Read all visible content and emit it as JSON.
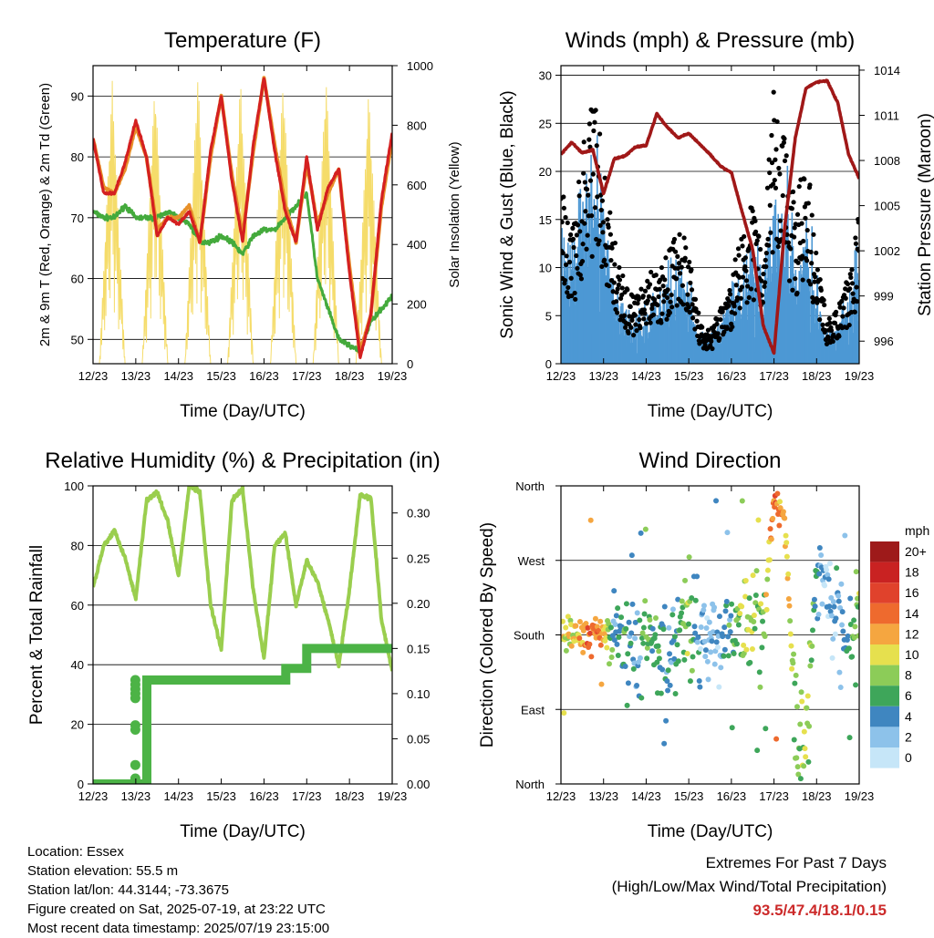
{
  "colors": {
    "temp2m": "#e8912a",
    "temp9m": "#d42020",
    "dewpoint": "#44aa3c",
    "solar": "#f5dc6a",
    "gust": "#000000",
    "wind": "#4d98d4",
    "pressure": "#a01818",
    "rh": "#9ace4e",
    "precip": "#4cb346",
    "extremes_text": "#cc2a2a"
  },
  "time_ticks": [
    "12/23",
    "13/23",
    "14/23",
    "15/23",
    "16/23",
    "17/23",
    "18/23",
    "19/23"
  ],
  "time_axis_label": "Time (Day/UTC)",
  "panels": {
    "temperature": {
      "title": "Temperature (F)",
      "ylabel_left": "2m & 9m T (Red, Orange) & 2m Td (Green)",
      "ylabel_right": "Solar Insolation (Yellow)",
      "left_ticks": [
        "50",
        "60",
        "70",
        "80",
        "90"
      ],
      "right_ticks": [
        "0",
        "200",
        "400",
        "600",
        "800",
        "1000"
      ]
    },
    "winds": {
      "title": "Winds (mph) & Pressure (mb)",
      "ylabel_left": "Sonic Wind & Gust (Blue, Black)",
      "ylabel_right": "Station Pressure (Maroon)",
      "left_ticks": [
        "0",
        "5",
        "10",
        "15",
        "20",
        "25",
        "30"
      ],
      "right_ticks": [
        "996",
        "999",
        "1002",
        "1005",
        "1008",
        "1011",
        "1014"
      ]
    },
    "humidity": {
      "title": "Relative Humidity (%) & Precipitation (in)",
      "ylabel_left": "Percent & Total Rainfall",
      "left_ticks": [
        "0",
        "20",
        "40",
        "60",
        "80",
        "100"
      ],
      "right_ticks": [
        "0.00",
        "0.05",
        "0.10",
        "0.15",
        "0.20",
        "0.25",
        "0.30"
      ]
    },
    "direction": {
      "title": "Wind Direction",
      "ylabel_left": "Direction (Colored By Speed)",
      "left_ticks": [
        "North",
        "East",
        "South",
        "West",
        "North"
      ],
      "legend_title": "mph",
      "legend_labels": [
        "20+",
        "18",
        "16",
        "14",
        "12",
        "10",
        "8",
        "6",
        "4",
        "2",
        "0"
      ],
      "legend_colors": [
        "#9e1a1a",
        "#c92222",
        "#e0422c",
        "#ee6a2e",
        "#f5a640",
        "#e6e04e",
        "#8ccc58",
        "#3ea65a",
        "#3f86c0",
        "#8dc2ea",
        "#c6e6f8"
      ]
    }
  },
  "footer": {
    "location": "Location: Essex",
    "elevation": "Station elevation: 55.5 m",
    "latlon": "Station lat/lon: 44.3144; -73.3675",
    "created": "Figure created on Sat, 2025-07-19, at 23:22 UTC",
    "recent": "Most recent data timestamp: 2025/07/19 23:15:00"
  },
  "extremes": {
    "line1": "Extremes For Past 7 Days",
    "line2": "(High/Low/Max Wind/Total Precipitation)",
    "values": "93.5/47.4/18.1/0.15"
  },
  "chart_data": [
    {
      "type": "line",
      "title": "Temperature (F)",
      "xlabel": "Time (Day/UTC)",
      "ylabel": "2m & 9m T (Red, Orange) & 2m Td (Green)",
      "ylabel_right": "Solar Insolation (Yellow)",
      "ylim": [
        46,
        95
      ],
      "ylim_right": [
        0,
        1000
      ],
      "x": [
        12.0,
        12.25,
        12.5,
        12.75,
        13.0,
        13.25,
        13.5,
        13.75,
        14.0,
        14.25,
        14.5,
        14.75,
        15.0,
        15.25,
        15.5,
        15.75,
        16.0,
        16.25,
        16.5,
        16.75,
        17.0,
        17.25,
        17.5,
        17.75,
        18.0,
        18.25,
        18.5,
        18.75,
        19.0
      ],
      "series": [
        {
          "values": [
            83,
            75,
            74,
            78,
            85,
            80,
            68,
            70,
            70,
            72,
            66,
            80,
            90,
            77,
            67,
            81,
            93,
            82,
            72,
            66,
            79,
            69,
            74,
            78,
            62,
            48,
            54,
            72,
            83
          ]
        },
        {
          "values": [
            83,
            74,
            74,
            79,
            86,
            80,
            67,
            70,
            69,
            71,
            66,
            81,
            90,
            76,
            66,
            82,
            93,
            81,
            71,
            66,
            80,
            68,
            75,
            78,
            61,
            47,
            54,
            73,
            84
          ]
        },
        {
          "values": [
            71,
            70,
            70,
            72,
            70,
            70,
            70,
            71,
            70,
            69,
            66,
            66,
            67,
            66,
            64,
            67,
            68,
            68,
            70,
            72,
            74,
            60,
            55,
            50,
            49,
            48,
            53,
            55,
            57
          ]
        },
        {
          "values": [
            0,
            0,
            950,
            0,
            0,
            0,
            960,
            0,
            0,
            980,
            0,
            0,
            960,
            0,
            0,
            970,
            0,
            0,
            980,
            0,
            0,
            920,
            0,
            0,
            910,
            0,
            0,
            930,
            0
          ]
        }
      ]
    },
    {
      "type": "scatter",
      "title": "Winds (mph) & Pressure (mb)",
      "xlabel": "Time (Day/UTC)",
      "ylabel": "Sonic Wind & Gust (Blue, Black)",
      "ylabel_right": "Station Pressure (Maroon)",
      "ylim": [
        0,
        31
      ],
      "ylim_right": [
        994.5,
        1014.3
      ],
      "x": [
        12.0,
        12.25,
        12.5,
        12.75,
        13.0,
        13.25,
        13.5,
        13.75,
        14.0,
        14.25,
        14.5,
        14.75,
        15.0,
        15.25,
        15.5,
        15.75,
        16.0,
        16.25,
        16.5,
        16.75,
        17.0,
        17.25,
        17.5,
        17.75,
        18.0,
        18.25,
        18.5,
        18.75,
        19.0
      ],
      "series": [
        {
          "values": [
            18,
            12,
            20,
            25,
            20,
            12,
            7,
            6,
            8,
            9,
            10,
            12,
            11,
            4,
            3,
            5,
            8,
            12,
            15,
            10,
            26,
            22,
            14,
            20,
            10,
            4,
            5,
            8,
            14
          ]
        },
        {
          "values": [
            12,
            8,
            12,
            15,
            12,
            6,
            4,
            3,
            4,
            5,
            6,
            7,
            6,
            2,
            2,
            3,
            5,
            7,
            8,
            6,
            13,
            12,
            8,
            10,
            6,
            2,
            3,
            5,
            8
          ]
        },
        {
          "values": [
            1008.4,
            1009.2,
            1008.5,
            1008.7,
            1005.8,
            1008.1,
            1008.3,
            1008.9,
            1009.0,
            1011.1,
            1010.2,
            1009.5,
            1009.8,
            1009.1,
            1008.4,
            1007.6,
            1007.2,
            1004.6,
            1002.1,
            997.0,
            995.2,
            1003.5,
            1009.5,
            1012.8,
            1013.2,
            1013.3,
            1011.8,
            1008.4,
            1006.8
          ]
        }
      ]
    },
    {
      "type": "line",
      "title": "Relative Humidity (%) & Precipitation (in)",
      "xlabel": "Time (Day/UTC)",
      "ylabel": "Percent & Total Rainfall",
      "ylim": [
        0,
        100
      ],
      "ylim_right": [
        0,
        0.33
      ],
      "x": [
        12.0,
        12.25,
        12.5,
        12.75,
        13.0,
        13.25,
        13.5,
        13.75,
        14.0,
        14.25,
        14.5,
        14.75,
        15.0,
        15.25,
        15.5,
        15.75,
        16.0,
        16.25,
        16.5,
        16.75,
        17.0,
        17.25,
        17.5,
        17.75,
        18.0,
        18.25,
        18.5,
        18.75,
        19.0
      ],
      "series": [
        {
          "values": [
            66,
            80,
            85,
            76,
            62,
            95,
            98,
            88,
            70,
            100,
            98,
            60,
            45,
            95,
            99,
            65,
            42,
            80,
            84,
            60,
            75,
            68,
            55,
            40,
            65,
            97,
            96,
            55,
            38
          ]
        },
        {
          "values": [
            0.0,
            0.0,
            0.0,
            0.0,
            0.0,
            0.115,
            0.115,
            0.115,
            0.115,
            0.115,
            0.115,
            0.115,
            0.115,
            0.115,
            0.115,
            0.115,
            0.115,
            0.115,
            0.128,
            0.128,
            0.15,
            0.15,
            0.15,
            0.15,
            0.15,
            0.15,
            0.15,
            0.15,
            0.15
          ]
        }
      ]
    },
    {
      "type": "scatter",
      "title": "Wind Direction",
      "xlabel": "Time (Day/UTC)",
      "ylabel": "Direction (Colored By Speed)",
      "ylim": [
        0,
        360
      ],
      "colorbar": {
        "label": "mph",
        "ticks": [
          "0",
          "2",
          "4",
          "6",
          "8",
          "10",
          "12",
          "14",
          "16",
          "18",
          "20+"
        ]
      },
      "x": [
        12.0,
        12.25,
        12.5,
        12.75,
        13.0,
        13.25,
        13.5,
        13.75,
        14.0,
        14.25,
        14.5,
        14.75,
        15.0,
        15.25,
        15.5,
        15.75,
        16.0,
        16.25,
        16.5,
        16.75,
        17.0,
        17.25,
        17.5,
        17.75,
        18.0,
        18.25,
        18.5,
        18.75,
        19.0
      ],
      "series": [
        {
          "values": [
            180,
            180,
            178,
            182,
            185,
            175,
            170,
            160,
            180,
            165,
            150,
            190,
            200,
            160,
            170,
            175,
            180,
            185,
            190,
            200,
            340,
            320,
            70,
            50,
            250,
            230,
            200,
            160,
            190
          ]
        },
        {
          "values": [
            9,
            10,
            12,
            14,
            12,
            4,
            6,
            3,
            7,
            6,
            3,
            5,
            8,
            3,
            2,
            3,
            6,
            8,
            9,
            6,
            14,
            12,
            8,
            9,
            5,
            2,
            3,
            5,
            8
          ]
        }
      ]
    }
  ]
}
